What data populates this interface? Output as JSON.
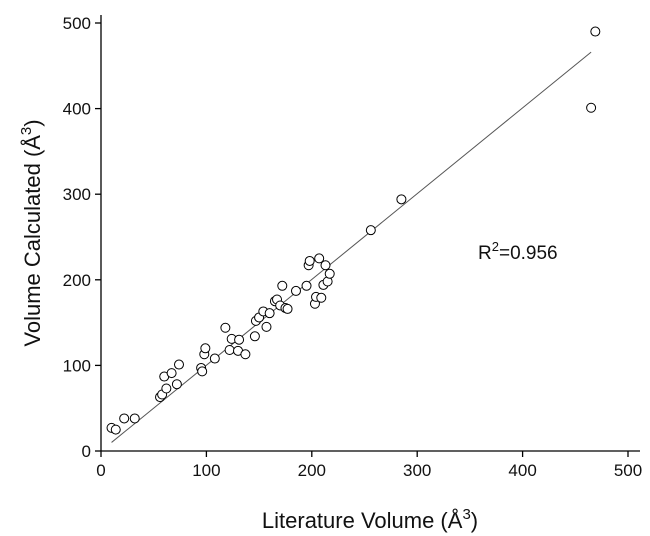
{
  "chart_data": {
    "type": "scatter",
    "title": "",
    "xlabel": "Literature Volume (Å",
    "xlabel_sup": "3",
    "xlabel_close": ")",
    "ylabel": "Volume Calculated (Å",
    "ylabel_sup": "3",
    "ylabel_close": ")",
    "xlim": [
      0,
      500
    ],
    "ylim": [
      0,
      500
    ],
    "xticks": [
      0,
      100,
      200,
      300,
      400,
      500
    ],
    "yticks": [
      0,
      100,
      200,
      300,
      400,
      500
    ],
    "grid": false,
    "annotation": {
      "prefix": "R",
      "sup": "2",
      "suffix": "=0.956"
    },
    "fit_line": {
      "x": [
        10,
        465
      ],
      "y": [
        10,
        466
      ]
    },
    "points": [
      [
        10,
        27
      ],
      [
        14,
        25
      ],
      [
        22,
        38
      ],
      [
        32,
        38
      ],
      [
        56,
        63
      ],
      [
        58,
        66
      ],
      [
        60,
        87
      ],
      [
        62,
        73
      ],
      [
        67,
        91
      ],
      [
        72,
        78
      ],
      [
        74,
        101
      ],
      [
        95,
        97
      ],
      [
        96,
        93
      ],
      [
        98,
        113
      ],
      [
        99,
        120
      ],
      [
        108,
        108
      ],
      [
        118,
        144
      ],
      [
        122,
        118
      ],
      [
        124,
        131
      ],
      [
        130,
        117
      ],
      [
        131,
        130
      ],
      [
        137,
        113
      ],
      [
        146,
        134
      ],
      [
        147,
        152
      ],
      [
        150,
        156
      ],
      [
        154,
        163
      ],
      [
        157,
        145
      ],
      [
        160,
        161
      ],
      [
        165,
        175
      ],
      [
        167,
        177
      ],
      [
        170,
        170
      ],
      [
        172,
        193
      ],
      [
        175,
        167
      ],
      [
        177,
        166
      ],
      [
        185,
        187
      ],
      [
        195,
        193
      ],
      [
        197,
        217
      ],
      [
        198,
        222
      ],
      [
        203,
        172
      ],
      [
        204,
        180
      ],
      [
        207,
        225
      ],
      [
        209,
        179
      ],
      [
        211,
        194
      ],
      [
        213,
        217
      ],
      [
        215,
        198
      ],
      [
        217,
        207
      ],
      [
        256,
        258
      ],
      [
        285,
        294
      ],
      [
        465,
        401
      ],
      [
        469,
        490
      ]
    ]
  }
}
